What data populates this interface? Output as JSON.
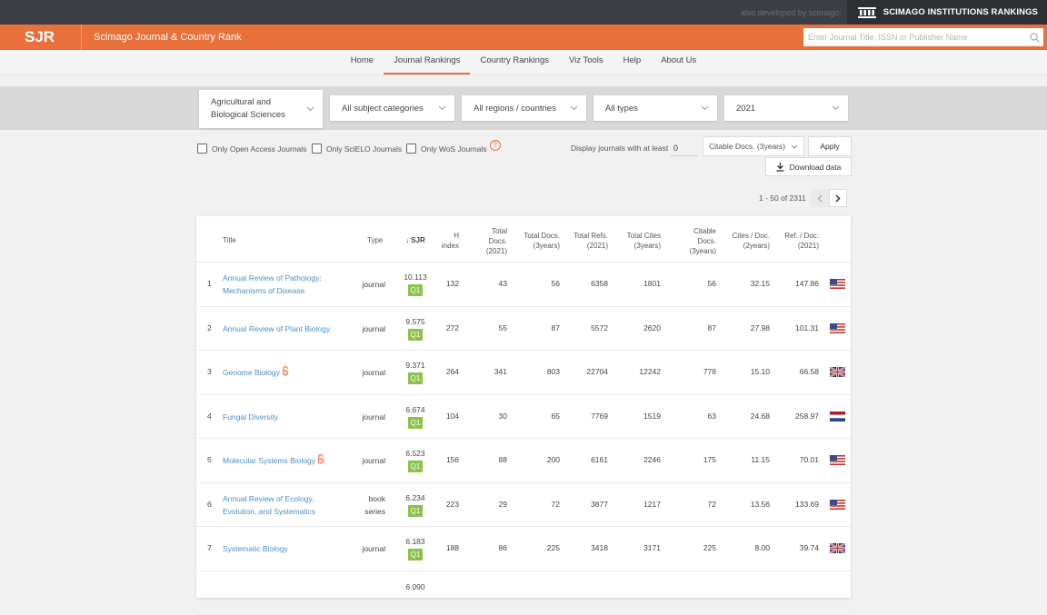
{
  "topbar": {
    "dev_text": "also developed by scimago:",
    "sir_label": "SCIMAGO INSTITUTIONS RANKINGS"
  },
  "brand": {
    "logo": "SJR",
    "site_title": "Scimago Journal & Country Rank",
    "search_placeholder": "Enter Journal Title, ISSN or Publisher Name"
  },
  "nav": {
    "items": [
      "Home",
      "Journal Rankings",
      "Country Rankings",
      "Viz Tools",
      "Help",
      "About Us"
    ],
    "active": "Journal Rankings"
  },
  "filters": {
    "area_line1": "Agricultural and",
    "area_line2": "Biological Sciences",
    "category": "All subject categories",
    "region": "All regions / countries",
    "type": "All types",
    "year": "2021"
  },
  "options": {
    "open_access": "Only Open Access Journals",
    "scielo": "Only SciELO Journals",
    "wos": "Only WoS Journals",
    "display_label": "Display journals with at least",
    "min_value": "0",
    "citable_select": "Citable Docs. (3years)",
    "apply": "Apply",
    "download": "Download data"
  },
  "pager": {
    "count": "1 - 50 of 2311"
  },
  "table": {
    "headers": {
      "title": "Title",
      "type": "Type",
      "sjr": "↓ SJR",
      "h1": "H",
      "h2": "index",
      "td1": "Total",
      "td2": "Docs.",
      "td3": "(2021)",
      "t3_1": "Total Docs.",
      "t3_2": "(3years)",
      "tr1": "Total Refs.",
      "tr2": "(2021)",
      "tc1": "Total Cites",
      "tc2": "(3years)",
      "cd1": "Citable",
      "cd2": "Docs.",
      "cd3": "(3years)",
      "cpd1": "Cites / Doc.",
      "cpd2": "(2years)",
      "rpd1": "Ref. / Doc.",
      "rpd2": "(2021)"
    },
    "rows": [
      {
        "rank": "1",
        "title1": "Annual Review of Pathology:",
        "title2": "Mechanisms of Disease",
        "oa": false,
        "type1": "journal",
        "type2": "",
        "sjr": "10.113",
        "q": "Q1",
        "h": "132",
        "docs": "43",
        "docs3": "56",
        "refs": "6358",
        "cites3": "1801",
        "citable": "56",
        "cpd": "32.15",
        "rpd": "147.86",
        "flag": "us"
      },
      {
        "rank": "2",
        "title1": "Annual Review of Plant Biology",
        "title2": "",
        "oa": false,
        "type1": "journal",
        "type2": "",
        "sjr": "9.575",
        "q": "Q1",
        "h": "272",
        "docs": "55",
        "docs3": "87",
        "refs": "5572",
        "cites3": "2620",
        "citable": "87",
        "cpd": "27.98",
        "rpd": "101.31",
        "flag": "us"
      },
      {
        "rank": "3",
        "title1": "Genome Biology",
        "title2": "",
        "oa": true,
        "type1": "journal",
        "type2": "",
        "sjr": "9.371",
        "q": "Q1",
        "h": "264",
        "docs": "341",
        "docs3": "803",
        "refs": "22704",
        "cites3": "12242",
        "citable": "778",
        "cpd": "15.10",
        "rpd": "66.58",
        "flag": "uk"
      },
      {
        "rank": "4",
        "title1": "Fungal Diversity",
        "title2": "",
        "oa": false,
        "type1": "journal",
        "type2": "",
        "sjr": "6.674",
        "q": "Q1",
        "h": "104",
        "docs": "30",
        "docs3": "65",
        "refs": "7769",
        "cites3": "1519",
        "citable": "63",
        "cpd": "24.68",
        "rpd": "258.97",
        "flag": "nl"
      },
      {
        "rank": "5",
        "title1": "Molecular Systems Biology",
        "title2": "",
        "oa": true,
        "type1": "journal",
        "type2": "",
        "sjr": "6.523",
        "q": "Q1",
        "h": "156",
        "docs": "88",
        "docs3": "200",
        "refs": "6161",
        "cites3": "2246",
        "citable": "175",
        "cpd": "11.15",
        "rpd": "70.01",
        "flag": "us"
      },
      {
        "rank": "6",
        "title1": "Annual Review of Ecology,",
        "title2": "Evolution, and Systematics",
        "oa": false,
        "type1": "book",
        "type2": "series",
        "sjr": "6.234",
        "q": "Q1",
        "h": "223",
        "docs": "29",
        "docs3": "72",
        "refs": "3877",
        "cites3": "1217",
        "citable": "72",
        "cpd": "13.56",
        "rpd": "133.69",
        "flag": "us"
      },
      {
        "rank": "7",
        "title1": "Systematic Biology",
        "title2": "",
        "oa": false,
        "type1": "journal",
        "type2": "",
        "sjr": "6.183",
        "q": "Q1",
        "h": "188",
        "docs": "86",
        "docs3": "225",
        "refs": "3418",
        "cites3": "3171",
        "citable": "225",
        "cpd": "8.00",
        "rpd": "39.74",
        "flag": "uk"
      },
      {
        "rank": "",
        "title1": "",
        "title2": "",
        "oa": false,
        "type1": "",
        "type2": "",
        "sjr": "6.090",
        "q": "",
        "h": "",
        "docs": "",
        "docs3": "",
        "refs": "",
        "cites3": "",
        "citable": "",
        "cpd": "",
        "rpd": "",
        "flag": ""
      }
    ]
  },
  "colors": {
    "accent": "#e8703a",
    "link": "#4a90c8",
    "quartile_q1": "#8bc34a",
    "topbar": "#3b3f44"
  }
}
